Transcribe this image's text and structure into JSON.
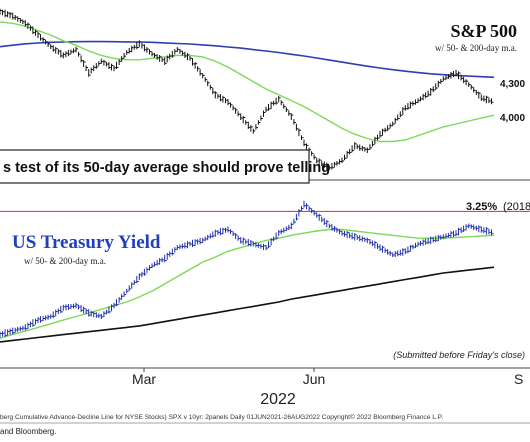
{
  "colors": {
    "price_bars": "#111111",
    "ma50_spx": "#7ed957",
    "ma200_spx": "#2b3fb3",
    "yield_bars": "#1f2fa8",
    "ma50_yield": "#7ed957",
    "ma200_yield": "#111111",
    "ref_line": "#c0392b",
    "yield_title": "#1f3fbf"
  },
  "chart_data": [
    {
      "type": "line",
      "panel": "top",
      "title": "S&P 500",
      "subtitle": "w/ 50- & 200-day m.a.",
      "price_labels": [
        "4,300",
        "4,000"
      ],
      "callout": "s test of its 50-day average should prove telling",
      "series": [
        {
          "role": "price",
          "values": [
            4720,
            4690,
            4640,
            4560,
            4480,
            4420,
            4460,
            4300,
            4380,
            4330,
            4440,
            4500,
            4430,
            4380,
            4460,
            4400,
            4280,
            4150,
            4100,
            4000,
            3900,
            4050,
            4120,
            4000,
            3820,
            3700,
            3650,
            3700,
            3800,
            3770,
            3880,
            3950,
            4060,
            4110,
            4170,
            4260,
            4300,
            4220,
            4130,
            4100
          ]
        },
        {
          "role": "ma50",
          "values": [
            4650,
            4640,
            4620,
            4590,
            4560,
            4520,
            4490,
            4450,
            4420,
            4400,
            4390,
            4390,
            4400,
            4410,
            4420,
            4420,
            4410,
            4380,
            4340,
            4290,
            4240,
            4190,
            4150,
            4110,
            4070,
            4020,
            3970,
            3920,
            3880,
            3850,
            3830,
            3830,
            3840,
            3870,
            3900,
            3930,
            3950,
            3970,
            3990,
            4010
          ]
        },
        {
          "role": "ma200",
          "values": [
            4480,
            4490,
            4500,
            4505,
            4510,
            4512,
            4514,
            4515,
            4515,
            4514,
            4513,
            4512,
            4510,
            4506,
            4502,
            4498,
            4492,
            4486,
            4478,
            4470,
            4460,
            4450,
            4440,
            4428,
            4416,
            4402,
            4388,
            4374,
            4360,
            4346,
            4334,
            4322,
            4312,
            4302,
            4294,
            4288,
            4282,
            4278,
            4274,
            4270
          ]
        }
      ]
    },
    {
      "type": "line",
      "panel": "bottom",
      "title": "US Treasury Yield",
      "subtitle": "w/ 50- & 200-day m.a.",
      "reference_line": {
        "value": 3.25,
        "label": "3.25%",
        "suffix": "(2018"
      },
      "x_ticks": [
        "Mar",
        "Jun",
        "S"
      ],
      "x_year": "2022",
      "note": "(Submitted before Friday's close)",
      "series": [
        {
          "role": "yield",
          "values": [
            1.55,
            1.6,
            1.65,
            1.75,
            1.8,
            1.92,
            1.95,
            1.85,
            1.8,
            1.95,
            2.15,
            2.35,
            2.5,
            2.6,
            2.75,
            2.8,
            2.85,
            2.95,
            3.0,
            2.85,
            2.8,
            2.75,
            2.95,
            3.05,
            3.35,
            3.2,
            3.05,
            2.95,
            2.9,
            2.85,
            2.75,
            2.65,
            2.7,
            2.8,
            2.85,
            2.9,
            2.95,
            3.05,
            3.0,
            2.95
          ]
        },
        {
          "role": "ma50",
          "values": [
            1.5,
            1.55,
            1.6,
            1.65,
            1.7,
            1.75,
            1.8,
            1.85,
            1.9,
            1.95,
            2.0,
            2.07,
            2.15,
            2.25,
            2.35,
            2.45,
            2.55,
            2.62,
            2.7,
            2.75,
            2.8,
            2.85,
            2.88,
            2.92,
            2.95,
            2.98,
            3.0,
            3.0,
            2.98,
            2.96,
            2.94,
            2.92,
            2.9,
            2.88,
            2.88,
            2.88,
            2.89,
            2.9,
            2.91,
            2.92
          ]
        },
        {
          "role": "ma200",
          "values": [
            1.45,
            1.47,
            1.49,
            1.51,
            1.53,
            1.55,
            1.57,
            1.59,
            1.61,
            1.63,
            1.65,
            1.67,
            1.7,
            1.73,
            1.76,
            1.79,
            1.82,
            1.85,
            1.88,
            1.91,
            1.94,
            1.97,
            2.0,
            2.04,
            2.07,
            2.1,
            2.13,
            2.16,
            2.19,
            2.22,
            2.25,
            2.28,
            2.31,
            2.34,
            2.37,
            2.4,
            2.42,
            2.44,
            2.46,
            2.48
          ]
        }
      ]
    }
  ],
  "footer": {
    "source_line": "berg Cumulative Advance-Decline Line for NYSE Stocks) SPX v 10yr: 2panels  Daily 01JUN2021-26AUG2022   Copyright© 2022 Bloomberg Finance L.P.",
    "credit": "and Bloomberg."
  }
}
